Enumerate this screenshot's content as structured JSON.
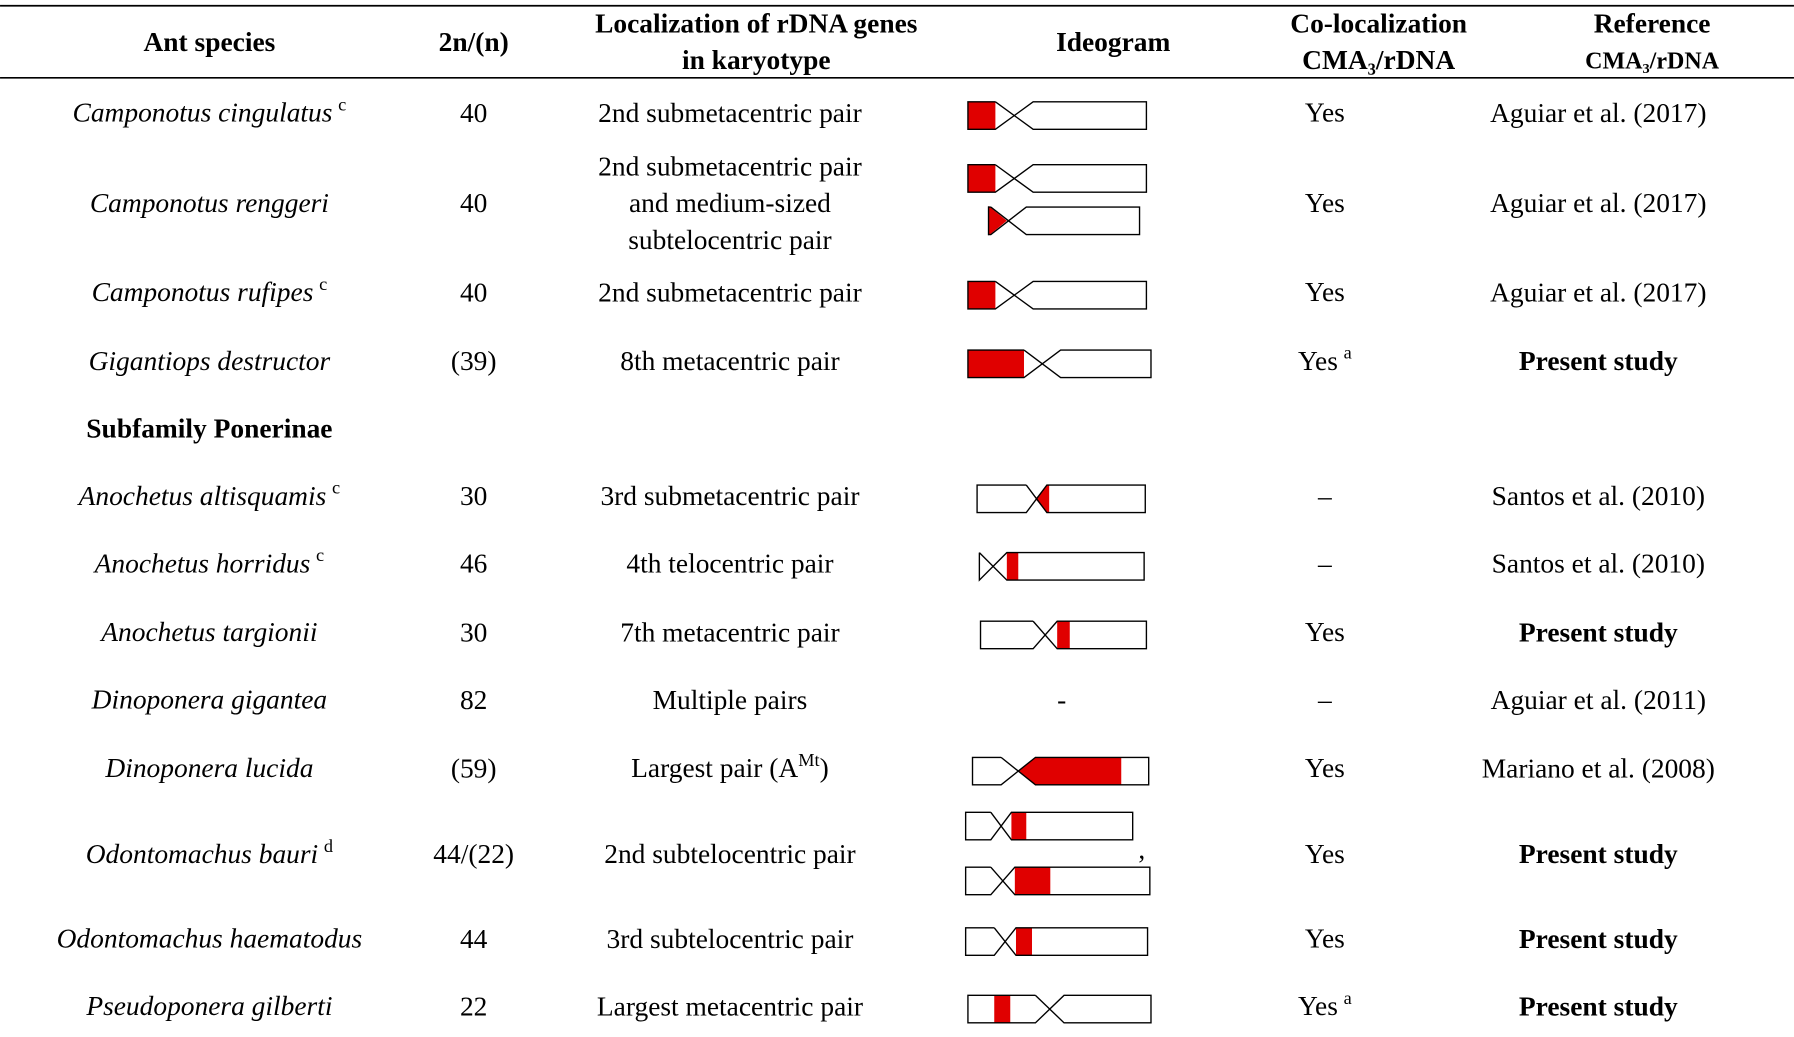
{
  "header": {
    "species": "Ant species",
    "chromosomes": "2n/(n)",
    "localization": [
      "Localization of rDNA genes",
      "in karyotype"
    ],
    "ideogram": "Ideogram",
    "colocalization": [
      "Co-localization",
      "CMA₃/rDNA"
    ],
    "reference": [
      "Reference",
      "CMA₃/rDNA"
    ]
  },
  "rows": [
    {
      "species": "Camponotus cingulatus",
      "note": "c",
      "chromosomes": "40",
      "localization": [
        "2nd submetacentric pair"
      ],
      "colocalization": "Yes",
      "reference": "Aguiar et al. (2017)"
    },
    {
      "species": "Camponotus renggeri",
      "chromosomes": "40",
      "localization": [
        "2nd submetacentric pair",
        "and  medium-sized",
        "subtelocentric pair"
      ],
      "colocalization": "Yes",
      "reference": "Aguiar et al. (2017)"
    },
    {
      "species": "Camponotus rufipes",
      "note": "c",
      "chromosomes": "40",
      "localization": [
        "2nd submetacentric pair"
      ],
      "colocalization": "Yes",
      "reference": "Aguiar et al. (2017)"
    },
    {
      "species": "Gigantiops destructor",
      "chromosomes": "(39)",
      "localization": [
        "8th metacentric pair"
      ],
      "colocalization": "Yes",
      "colocalization_note": "a",
      "reference": "Present study",
      "reference_bold": true
    },
    {
      "section": "Subfamily Ponerinae"
    },
    {
      "species": "Anochetus altisquamis",
      "note": "c",
      "chromosomes": "30",
      "localization": [
        "3rd submetacentric pair"
      ],
      "colocalization": "–",
      "reference": "Santos et al. (2010)"
    },
    {
      "species": "Anochetus horridus",
      "note": "c",
      "chromosomes": "46",
      "localization": [
        "4th telocentric pair"
      ],
      "colocalization": "–",
      "reference": "Santos et al. (2010)"
    },
    {
      "species": "Anochetus targionii",
      "chromosomes": "30",
      "localization": [
        "7th metacentric pair"
      ],
      "colocalization": "Yes",
      "reference": "Present study",
      "reference_bold": true
    },
    {
      "species": "Dinoponera gigantea",
      "chromosomes": "82",
      "localization": [
        "Multiple pairs"
      ],
      "ideogram": "-",
      "colocalization": "–",
      "reference": "Aguiar et al. (2011)"
    },
    {
      "species": "Dinoponera lucida",
      "chromosomes": "(59)",
      "localization": [
        "Largest pair (A"
      ],
      "localization_sup": "Mt",
      "localization_end": ")",
      "colocalization": "Yes",
      "reference": "Mariano et al. (2008)"
    },
    {
      "species": "Odontomachus bauri",
      "note": "d",
      "chromosomes": "44/(22)",
      "localization": [
        "2nd subtelocentric pair"
      ],
      "ideogram_note": ",",
      "colocalization": "Yes",
      "reference": "Present study",
      "reference_bold": true
    },
    {
      "species": "Odontomachus haematodus",
      "chromosomes": "44",
      "localization": [
        "3rd subtelocentric pair"
      ],
      "colocalization": "Yes",
      "reference": "Present study",
      "reference_bold": true
    },
    {
      "species": "Pseudoponera gilberti",
      "chromosomes": "22",
      "localization": [
        "Largest metacentric pair"
      ],
      "colocalization": "Yes",
      "colocalization_note": "a",
      "reference": "Present study",
      "reference_bold": true
    }
  ]
}
